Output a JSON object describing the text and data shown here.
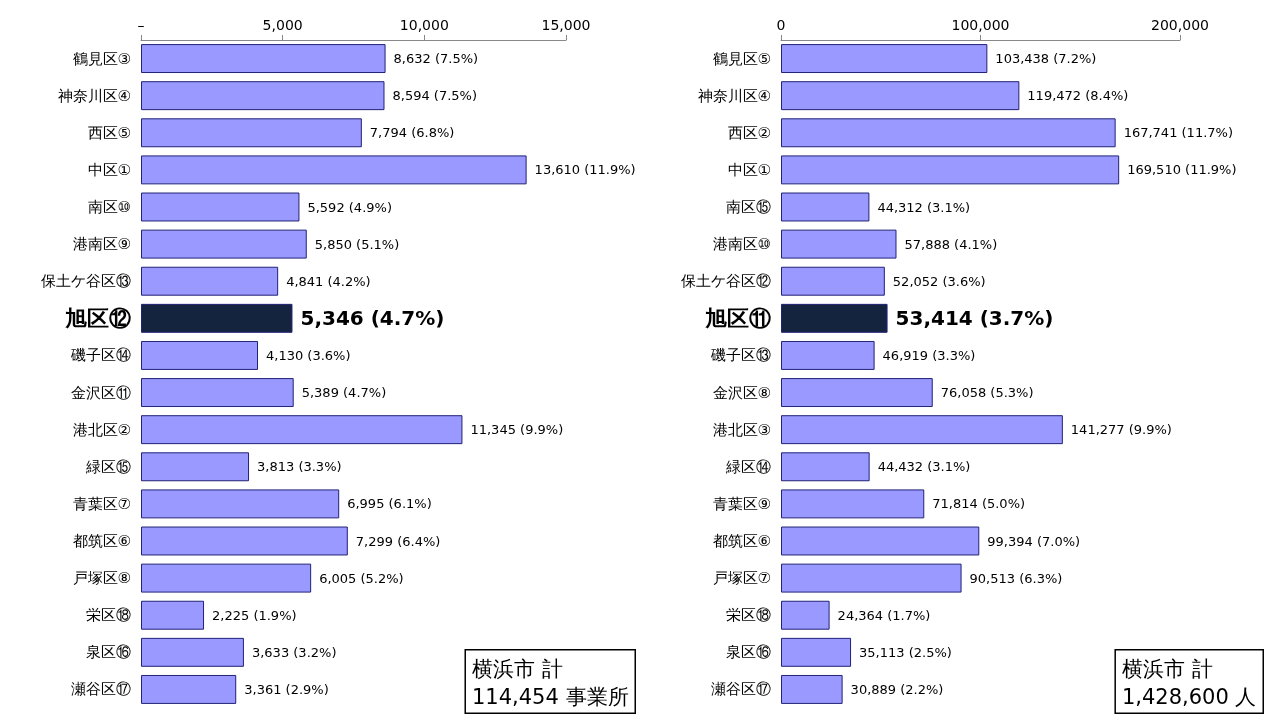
{
  "chart_data": [
    {
      "type": "bar",
      "orientation": "horizontal",
      "categories": [
        "鶴見区③",
        "神奈川区④",
        "西区⑤",
        "中区①",
        "南区⑩",
        "港南区⑨",
        "保土ケ谷区⑬",
        "旭区⑫",
        "磯子区⑭",
        "金沢区⑪",
        "港北区②",
        "緑区⑮",
        "青葉区⑦",
        "都筑区⑥",
        "戸塚区⑧",
        "栄区⑱",
        "泉区⑯",
        "瀬谷区⑰"
      ],
      "values": [
        8632,
        8594,
        7794,
        13610,
        5592,
        5850,
        4841,
        5346,
        4130,
        5389,
        11345,
        3813,
        6995,
        7299,
        6005,
        2225,
        3633,
        3361
      ],
      "colors": [
        "#9999ff",
        "#9999ff",
        "#9999ff",
        "#9999ff",
        "#9999ff",
        "#9999ff",
        "#9999ff",
        "#14243f",
        "#9999ff",
        "#9999ff",
        "#9999ff",
        "#9999ff",
        "#9999ff",
        "#9999ff",
        "#9999ff",
        "#9999ff",
        "#9999ff",
        "#9999ff"
      ],
      "value_labels": [
        "8,632 (7.5%)",
        "8,594 (7.5%)",
        "7,794 (6.8%)",
        "13,610 (11.9%)",
        "5,592 (4.9%)",
        "5,850 (5.1%)",
        "4,841 (4.2%)",
        "5,346 (4.7%)",
        "4,130 (3.6%)",
        "5,389 (4.7%)",
        "11,345 (9.9%)",
        "3,813 (3.3%)",
        "6,995 (6.1%)",
        "7,299 (6.4%)",
        "6,005 (5.2%)",
        "2,225 (1.9%)",
        "3,633 (3.2%)",
        "3,361 (2.9%)"
      ],
      "xlim": [
        0,
        15000
      ],
      "xticks": [
        {
          "value": 0,
          "label": "–"
        },
        {
          "value": 5000,
          "label": "5,000"
        },
        {
          "value": 10000,
          "label": "10,000"
        },
        {
          "value": 15000,
          "label": "15,000"
        }
      ],
      "grid": false,
      "annotations": [
        "横浜市 計\n114,454 事業所"
      ]
    },
    {
      "type": "bar",
      "orientation": "horizontal",
      "categories": [
        "鶴見区⑤",
        "神奈川区④",
        "西区②",
        "中区①",
        "南区⑮",
        "港南区⑩",
        "保土ケ谷区⑫",
        "旭区⑪",
        "磯子区⑬",
        "金沢区⑧",
        "港北区③",
        "緑区⑭",
        "青葉区⑨",
        "都筑区⑥",
        "戸塚区⑦",
        "栄区⑱",
        "泉区⑯",
        "瀬谷区⑰"
      ],
      "values": [
        103438,
        119472,
        167741,
        169510,
        44312,
        57888,
        52052,
        53414,
        46919,
        76058,
        141277,
        44432,
        71814,
        99394,
        90513,
        24364,
        35113,
        30889
      ],
      "colors": [
        "#9999ff",
        "#9999ff",
        "#9999ff",
        "#9999ff",
        "#9999ff",
        "#9999ff",
        "#9999ff",
        "#14243f",
        "#9999ff",
        "#9999ff",
        "#9999ff",
        "#9999ff",
        "#9999ff",
        "#9999ff",
        "#9999ff",
        "#9999ff",
        "#9999ff",
        "#9999ff"
      ],
      "value_labels": [
        "103,438 (7.2%)",
        "119,472 (8.4%)",
        "167,741 (11.7%)",
        "169,510 (11.9%)",
        "44,312 (3.1%)",
        "57,888 (4.1%)",
        "52,052 (3.6%)",
        "53,414 (3.7%)",
        "46,919 (3.3%)",
        "76,058 (5.3%)",
        "141,277 (9.9%)",
        "44,432 (3.1%)",
        "71,814 (5.0%)",
        "99,394 (7.0%)",
        "90,513 (6.3%)",
        "24,364 (1.7%)",
        "35,113 (2.5%)",
        "30,889 (2.2%)"
      ],
      "xlim": [
        0,
        200000
      ],
      "xticks": [
        {
          "value": 0,
          "label": "0"
        },
        {
          "value": 100000,
          "label": "100,000"
        },
        {
          "value": 200000,
          "label": "200,000"
        }
      ],
      "grid": false,
      "annotations": [
        "横浜市 計\n1,428,600 人"
      ]
    }
  ]
}
